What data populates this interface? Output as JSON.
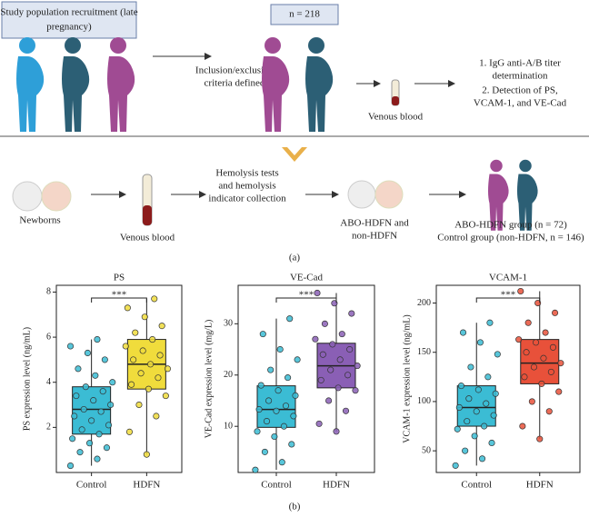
{
  "diagram": {
    "recruitment": [
      "Study population recruitment (late",
      "pregnancy)"
    ],
    "n_total": "n = 218",
    "criteria": [
      "Inclusion/exclusion",
      "criteria defined"
    ],
    "venous_blood_top": "Venous blood",
    "detection": [
      "1. IgG anti-A/B titer",
      "determination",
      "2. Detection of PS,",
      "VCAM-1, and VE-Cad"
    ],
    "newborns": "Newborns",
    "venous_blood_bottom": "Venous blood",
    "hemolysis": [
      "Hemolysis tests",
      "and hemolysis",
      "indicator collection"
    ],
    "classification": [
      "ABO-HDFN and",
      "non-HDFN"
    ],
    "groups": [
      "ABO-HDFN group (n = 72)",
      "Control group (non-HDFN, n = 146)"
    ],
    "caption_a": "(a)",
    "caption_b": "(b)"
  },
  "chart_data": [
    {
      "type": "box",
      "title": "PS",
      "ylabel": "PS expression level (ng/mL)",
      "categories": [
        "Control",
        "HDFN"
      ],
      "annotation": "***",
      "ylim": [
        0,
        8.3
      ],
      "yticks": [
        2,
        4,
        6,
        8
      ],
      "boxes": [
        {
          "color": "#3bbcd4",
          "min": 0.3,
          "q1": 1.7,
          "median": 2.8,
          "q3": 3.8,
          "max": 5.9,
          "points": [
            0.3,
            0.6,
            0.9,
            1.1,
            1.3,
            1.5,
            1.7,
            1.9,
            2.1,
            2.3,
            2.5,
            2.7,
            2.8,
            3.0,
            3.2,
            3.4,
            3.6,
            3.8,
            4.0,
            4.3,
            4.6,
            5.0,
            5.3,
            5.6,
            5.9
          ]
        },
        {
          "color": "#f0dc3c",
          "min": 0.8,
          "q1": 3.7,
          "median": 4.8,
          "q3": 5.9,
          "max": 7.7,
          "points": [
            0.8,
            1.8,
            2.5,
            3.0,
            3.4,
            3.7,
            3.9,
            4.2,
            4.4,
            4.6,
            4.8,
            5.0,
            5.2,
            5.4,
            5.6,
            5.9,
            6.2,
            6.5,
            6.9,
            7.3,
            7.7
          ]
        }
      ]
    },
    {
      "type": "box",
      "title": "VE-Cad",
      "ylabel": "VE-Cad expression level (mg/L)",
      "categories": [
        "Control",
        "HDFN"
      ],
      "annotation": "***",
      "ylim": [
        1,
        37.5
      ],
      "yticks": [
        10,
        20,
        30
      ],
      "boxes": [
        {
          "color": "#3bbcd4",
          "min": 1.5,
          "q1": 9.8,
          "median": 13.3,
          "q3": 17.9,
          "max": 31,
          "points": [
            1.5,
            3,
            5,
            6.5,
            8,
            9,
            10,
            11,
            12,
            13,
            13.3,
            14,
            15,
            16,
            17,
            18,
            19.5,
            21,
            23,
            25,
            28,
            31
          ]
        },
        {
          "color": "#8a5fb5",
          "min": 9,
          "q1": 17.5,
          "median": 21.8,
          "q3": 26.2,
          "max": 36,
          "points": [
            9,
            10.5,
            13,
            15,
            17,
            17.5,
            19,
            20,
            21,
            21.8,
            23,
            24,
            25,
            26,
            27,
            28,
            30,
            32,
            34,
            36
          ]
        }
      ]
    },
    {
      "type": "box",
      "title": "VCAM-1",
      "ylabel": "VCAM-1 expression level (ng/mL)",
      "categories": [
        "Control",
        "HDFN"
      ],
      "annotation": "***",
      "ylim": [
        28,
        218
      ],
      "yticks": [
        50,
        100,
        150,
        200
      ],
      "boxes": [
        {
          "color": "#3bbcd4",
          "min": 35,
          "q1": 75,
          "median": 94,
          "q3": 116,
          "max": 180,
          "points": [
            35,
            42,
            50,
            58,
            65,
            72,
            75,
            80,
            86,
            90,
            94,
            98,
            103,
            108,
            112,
            116,
            125,
            135,
            148,
            160,
            170,
            180
          ]
        },
        {
          "color": "#e8513a",
          "min": 62,
          "q1": 118,
          "median": 139,
          "q3": 163,
          "max": 212,
          "points": [
            62,
            75,
            90,
            100,
            110,
            118,
            125,
            130,
            135,
            139,
            144,
            150,
            155,
            160,
            163,
            170,
            180,
            190,
            200,
            212
          ]
        }
      ]
    }
  ]
}
